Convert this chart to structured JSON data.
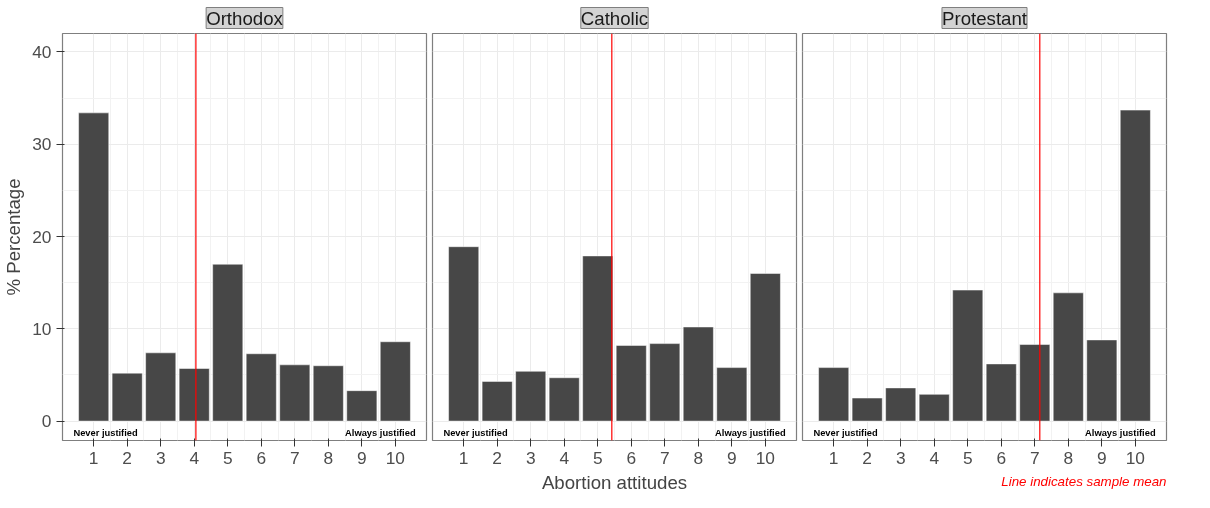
{
  "chart_data": [
    {
      "type": "bar",
      "title": "Orthodox",
      "ylabel": "% Percentage",
      "x": [
        1,
        2,
        3,
        4,
        5,
        6,
        7,
        8,
        9,
        10
      ],
      "values": [
        33.4,
        5.2,
        7.4,
        5.7,
        17.0,
        7.3,
        6.1,
        6.0,
        3.3,
        8.6
      ],
      "color": "#474747",
      "xlim": [
        0.07,
        10.93
      ],
      "xticks": [
        1,
        2,
        3,
        4,
        5,
        6,
        7,
        8,
        9,
        10
      ],
      "ylim": [
        -2.1,
        42
      ],
      "yticks": [
        0,
        10,
        20,
        30,
        40
      ],
      "grid": true,
      "ref_lines": [
        {
          "axis": "x",
          "value": 4.05,
          "color": "#ff0000"
        }
      ],
      "annotations": [
        "Never justified",
        "Always justified"
      ]
    },
    {
      "type": "bar",
      "title": "Catholic",
      "xlabel": "Abortion attitudes",
      "x": [
        1,
        2,
        3,
        4,
        5,
        6,
        7,
        8,
        9,
        10
      ],
      "values": [
        18.9,
        4.3,
        5.4,
        4.7,
        17.9,
        8.2,
        8.4,
        10.2,
        5.8,
        16.0
      ],
      "color": "#474747",
      "xlim": [
        0.07,
        10.93
      ],
      "xticks": [
        1,
        2,
        3,
        4,
        5,
        6,
        7,
        8,
        9,
        10
      ],
      "ylim": [
        -2.1,
        42
      ],
      "yticks": [
        0,
        10,
        20,
        30,
        40
      ],
      "grid": true,
      "tick_labels": "x",
      "ref_lines": [
        {
          "axis": "x",
          "value": 5.42,
          "color": "#ff0000"
        }
      ],
      "annotations": [
        "Never justified",
        "Always justified"
      ]
    },
    {
      "type": "bar",
      "title": "Protestant",
      "x": [
        1,
        2,
        3,
        4,
        5,
        6,
        7,
        8,
        9,
        10
      ],
      "values": [
        5.8,
        2.5,
        3.6,
        2.9,
        14.2,
        6.2,
        8.3,
        13.9,
        8.8,
        33.7
      ],
      "color": "#474747",
      "xlim": [
        0.07,
        10.93
      ],
      "xticks": [
        1,
        2,
        3,
        4,
        5,
        6,
        7,
        8,
        9,
        10
      ],
      "ylim": [
        -2.1,
        42
      ],
      "yticks": [
        0,
        10,
        20,
        30,
        40
      ],
      "grid": true,
      "tick_labels": "x",
      "ref_lines": [
        {
          "axis": "x",
          "value": 7.15,
          "color": "#ff0000"
        }
      ],
      "annotations": [
        "Never justified",
        "Always justified",
        "Line indicates sample mean"
      ]
    }
  ]
}
